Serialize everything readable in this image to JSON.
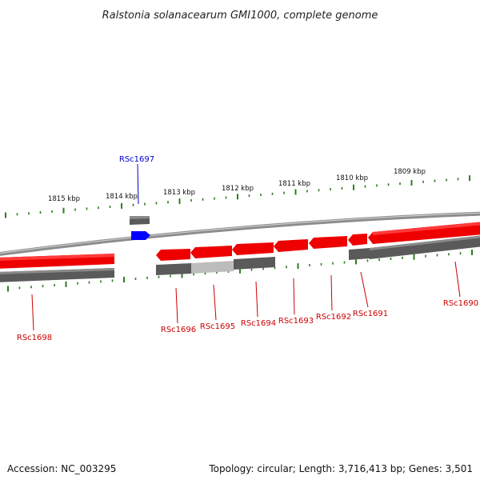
{
  "title": "Ralstonia solanacearum GMI1000, complete genome",
  "footer": {
    "accession": "Accession: NC_003295",
    "stats": "Topology: circular; Length: 3,716,413 bp; Genes: 3,501"
  },
  "colors": {
    "gene_red": "#ff0000",
    "gene_blue": "#0000ff",
    "cds_gray": "#5a5a5a",
    "cds_light": "#b8b8b8",
    "tick_green": "#2e7d1e",
    "backbone": "#9a9a9a",
    "label_red": "#cc0000",
    "label_blue": "#0000cc"
  },
  "scale_labels": [
    "1815 kbp",
    "1814 kbp",
    "1813 kbp",
    "1812 kbp",
    "1811 kbp",
    "1810 kbp",
    "1809 kbp"
  ],
  "genes": [
    {
      "name": "RSc1698",
      "color": "red"
    },
    {
      "name": "RSc1697",
      "color": "blue"
    },
    {
      "name": "RSc1696",
      "color": "red"
    },
    {
      "name": "RSc1695",
      "color": "red"
    },
    {
      "name": "RSc1694",
      "color": "red"
    },
    {
      "name": "RSc1693",
      "color": "red"
    },
    {
      "name": "RSc1692",
      "color": "red"
    },
    {
      "name": "RSc1691",
      "color": "red"
    },
    {
      "name": "RSc1690",
      "color": "red"
    }
  ]
}
